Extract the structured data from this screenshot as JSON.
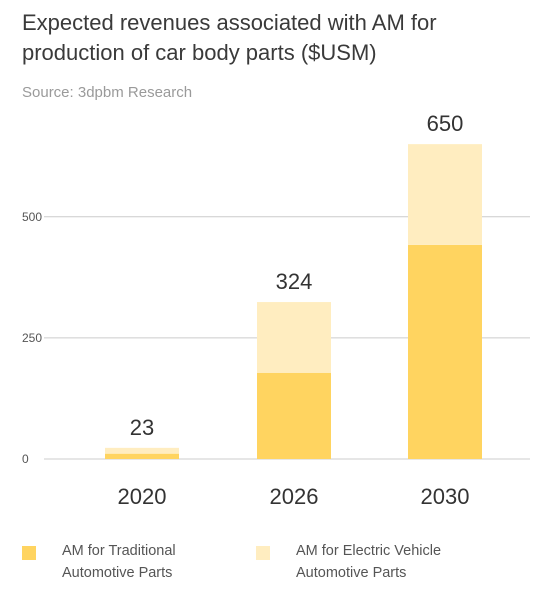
{
  "header": {
    "title": "Expected revenues associated with AM for production of car body parts ($USM)",
    "source": "Source: 3dpbm Research"
  },
  "colors": {
    "traditional": "#FFD460",
    "electric": "#FFEDC0",
    "gridline": "#cccccc"
  },
  "legend": [
    {
      "label": "AM for Traditional Automotive Parts",
      "color": "#FFD460"
    },
    {
      "label": "AM for Electric Vehicle Automotive Parts",
      "color": "#FFEDC0"
    }
  ],
  "chart_data": {
    "type": "bar",
    "stacked": true,
    "categories": [
      "2020",
      "2026",
      "2030"
    ],
    "series": [
      {
        "name": "AM for Traditional Automotive Parts",
        "values": [
          11,
          178,
          442
        ]
      },
      {
        "name": "AM for Electric Vehicle Automotive Parts",
        "values": [
          12,
          146,
          208
        ]
      }
    ],
    "totals": [
      "23",
      "324",
      "650"
    ],
    "yticks": [
      "0",
      "250",
      "500"
    ],
    "ylim": [
      0,
      650
    ],
    "grid": true,
    "legend_position": "bottom"
  }
}
